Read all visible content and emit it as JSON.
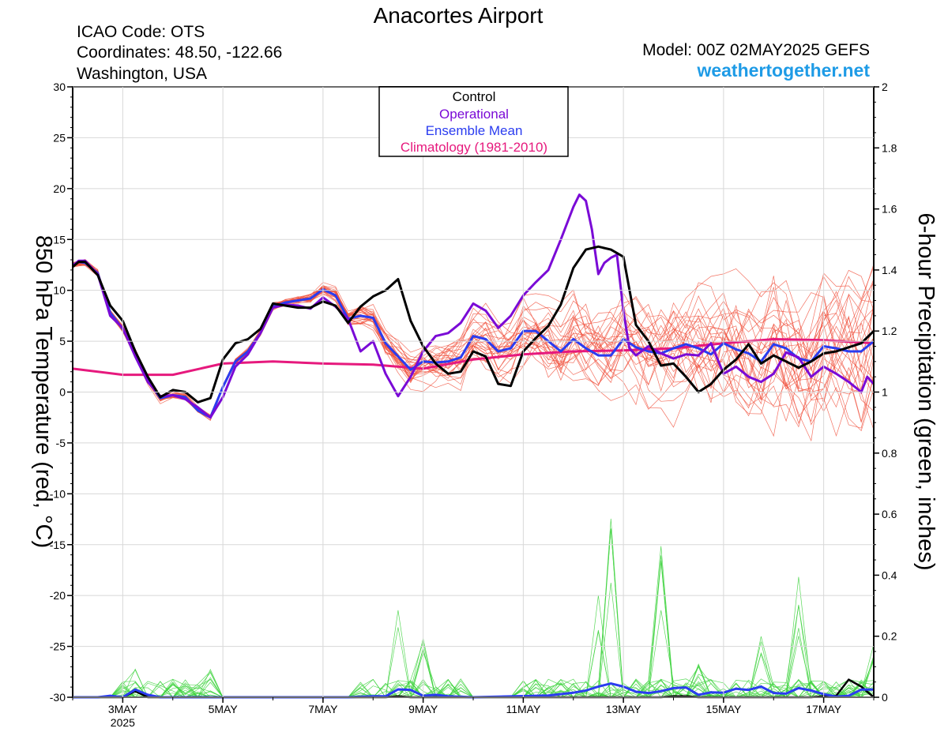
{
  "header": {
    "title": "Anacortes Airport",
    "icao": "ICAO Code: OTS",
    "coords": "Coordinates: 48.50, -122.66",
    "region": "Washington, USA",
    "model": "Model: 00Z 02MAY2025 GEFS",
    "site": "weathertogether.net"
  },
  "colors": {
    "control": "#000000",
    "operational": "#7a0ad6",
    "mean": "#2a3cf0",
    "climatology": "#e6197d",
    "ens_temp": "#f0503c",
    "ens_precip": "#3cd23c",
    "site": "#1e9be6"
  },
  "chart_data": {
    "type": "line",
    "title": "Anacortes Airport",
    "ylabel": "850 hPa Temperature (red, °C)",
    "y2label": "6-hour Precipitation (green, inches)",
    "xlim": [
      2.0,
      18.0
    ],
    "ylim": [
      -30,
      30
    ],
    "y2lim": [
      0,
      2
    ],
    "y_ticks": [
      30,
      25,
      20,
      15,
      10,
      5,
      0,
      -5,
      -10,
      -15,
      -20,
      -25,
      -30
    ],
    "y2_ticks": [
      "2",
      "1.8",
      "1.6",
      "1.4",
      "1.2",
      "1",
      "0.8",
      "0.6",
      "0.4",
      "0.2",
      "0"
    ],
    "x_ticks": [
      {
        "x": 3,
        "label": "3MAY",
        "sub": "2025"
      },
      {
        "x": 5,
        "label": "5MAY"
      },
      {
        "x": 7,
        "label": "7MAY"
      },
      {
        "x": 9,
        "label": "9MAY"
      },
      {
        "x": 11,
        "label": "11MAY"
      },
      {
        "x": 13,
        "label": "13MAY"
      },
      {
        "x": 15,
        "label": "15MAY"
      },
      {
        "x": 17,
        "label": "17MAY"
      }
    ],
    "legend": {
      "position": "top-center",
      "entries": [
        "Control",
        "Operational",
        "Ensemble Mean",
        "Climatology (1981-2010)"
      ]
    },
    "series": [
      {
        "key": "control_temp",
        "x": [
          2.0,
          2.12,
          2.25,
          2.5,
          2.75,
          3.0,
          3.25,
          3.5,
          3.75,
          4.0,
          4.25,
          4.5,
          4.75,
          5.0,
          5.25,
          5.5,
          5.75,
          6.0,
          6.25,
          6.5,
          6.75,
          7.0,
          7.25,
          7.5,
          7.75,
          8.0,
          8.25,
          8.5,
          8.75,
          9.0,
          9.25,
          9.5,
          9.75,
          10.0,
          10.25,
          10.5,
          10.75,
          11.0,
          11.25,
          11.5,
          11.75,
          12.0,
          12.25,
          12.5,
          12.75,
          13.0,
          13.25,
          13.5,
          13.75,
          14.0,
          14.25,
          14.5,
          14.75,
          15.0,
          15.25,
          15.5,
          15.75,
          16.0,
          16.25,
          16.5,
          16.75,
          17.0,
          17.25,
          17.5,
          17.75,
          18.0
        ],
        "y": [
          12.3,
          12.8,
          12.8,
          11.5,
          8.5,
          7.0,
          4.0,
          1.5,
          -0.5,
          0.2,
          0.0,
          -1.0,
          -0.6,
          3.2,
          4.8,
          5.2,
          6.2,
          8.7,
          8.5,
          8.3,
          8.3,
          8.9,
          8.5,
          6.8,
          8.4,
          9.4,
          10.0,
          11.1,
          7.0,
          4.5,
          2.8,
          1.8,
          2.0,
          4.0,
          3.5,
          0.8,
          0.6,
          4.0,
          5.3,
          6.5,
          8.6,
          12.2,
          14.0,
          14.3,
          14.0,
          13.3,
          6.6,
          5.0,
          2.6,
          2.8,
          1.5,
          0.0,
          0.8,
          2.2,
          3.2,
          4.7,
          2.8,
          3.6,
          3.0,
          2.4,
          3.0,
          3.8,
          4.0,
          4.4,
          4.8,
          6.0
        ]
      },
      {
        "key": "operational_temp",
        "x": [
          2.0,
          2.12,
          2.25,
          2.5,
          2.75,
          3.0,
          3.25,
          3.5,
          3.75,
          4.0,
          4.25,
          4.5,
          4.75,
          5.0,
          5.25,
          5.5,
          5.75,
          6.0,
          6.25,
          6.5,
          6.75,
          7.0,
          7.25,
          7.5,
          7.75,
          8.0,
          8.25,
          8.5,
          8.75,
          9.0,
          9.25,
          9.5,
          9.75,
          10.0,
          10.25,
          10.5,
          10.75,
          11.0,
          11.25,
          11.5,
          11.75,
          12.0,
          12.12,
          12.25,
          12.37,
          12.5,
          12.62,
          12.75,
          12.87,
          13.0,
          13.12,
          13.25,
          13.5,
          13.75,
          14.0,
          14.25,
          14.5,
          14.75,
          15.0,
          15.25,
          15.5,
          15.75,
          16.0,
          16.25,
          16.5,
          16.75,
          17.0,
          17.25,
          17.5,
          17.75,
          17.87,
          18.0
        ],
        "y": [
          12.4,
          12.9,
          12.9,
          11.6,
          7.5,
          6.3,
          3.5,
          1.0,
          -0.4,
          -0.3,
          -0.7,
          -1.5,
          -2.5,
          -0.5,
          2.5,
          3.7,
          5.8,
          8.3,
          8.6,
          8.5,
          8.2,
          9.3,
          8.4,
          7.2,
          4.0,
          5.0,
          1.8,
          -0.4,
          1.5,
          4.0,
          5.5,
          5.8,
          6.8,
          8.7,
          8.0,
          6.3,
          7.5,
          9.5,
          10.8,
          12.0,
          15.0,
          18.2,
          19.4,
          18.8,
          16.0,
          11.6,
          12.7,
          13.2,
          13.5,
          8.0,
          4.3,
          3.6,
          4.5,
          3.8,
          3.3,
          3.7,
          3.6,
          4.8,
          1.8,
          2.5,
          1.5,
          1.0,
          1.8,
          3.9,
          3.4,
          1.5,
          2.5,
          1.8,
          1.0,
          0.0,
          1.5,
          0.8
        ]
      },
      {
        "key": "mean_temp",
        "x": [
          2.0,
          2.12,
          2.25,
          2.5,
          2.75,
          3.0,
          3.25,
          3.5,
          3.75,
          4.0,
          4.25,
          4.5,
          4.75,
          5.0,
          5.25,
          5.5,
          5.75,
          6.0,
          6.25,
          6.5,
          6.75,
          7.0,
          7.25,
          7.5,
          7.75,
          8.0,
          8.25,
          8.5,
          8.75,
          9.0,
          9.25,
          9.5,
          9.75,
          10.0,
          10.25,
          10.5,
          10.75,
          11.0,
          11.25,
          11.5,
          11.75,
          12.0,
          12.25,
          12.5,
          12.75,
          13.0,
          13.25,
          13.5,
          13.75,
          14.0,
          14.25,
          14.5,
          14.75,
          15.0,
          15.25,
          15.5,
          15.75,
          16.0,
          16.25,
          16.5,
          16.75,
          17.0,
          17.25,
          17.5,
          17.75,
          18.0
        ],
        "y": [
          12.5,
          12.8,
          12.7,
          11.7,
          7.8,
          6.2,
          3.8,
          1.2,
          -0.6,
          -0.3,
          -0.5,
          -1.8,
          -2.5,
          0.5,
          3.0,
          4.0,
          5.8,
          8.4,
          8.8,
          9.0,
          9.2,
          10.1,
          9.5,
          7.2,
          7.5,
          7.3,
          4.8,
          3.5,
          2.2,
          3.0,
          2.9,
          3.0,
          3.4,
          5.5,
          5.2,
          4.0,
          4.3,
          6.0,
          6.0,
          5.0,
          4.0,
          5.2,
          4.3,
          3.6,
          3.6,
          5.2,
          4.4,
          4.0,
          3.8,
          4.3,
          4.7,
          4.3,
          3.7,
          4.8,
          4.2,
          3.8,
          3.0,
          4.7,
          4.3,
          3.3,
          3.0,
          4.5,
          4.3,
          4.0,
          4.0,
          5.0
        ]
      },
      {
        "key": "climatology_temp",
        "x": [
          2.0,
          3.0,
          4.0,
          5.0,
          6.0,
          7.0,
          8.0,
          9.0,
          10.0,
          11.0,
          12.0,
          13.0,
          14.0,
          15.0,
          16.0,
          17.0,
          18.0
        ],
        "y": [
          2.3,
          1.7,
          1.7,
          2.8,
          3.0,
          2.8,
          2.7,
          2.3,
          3.2,
          3.7,
          4.0,
          4.1,
          4.3,
          4.8,
          5.2,
          5.1,
          4.8
        ]
      },
      {
        "key": "control_precip",
        "x": [
          2.0,
          2.5,
          2.75,
          3.0,
          3.25,
          3.5,
          3.75,
          4.0,
          4.5,
          5.0,
          5.5,
          6.0,
          6.5,
          7.0,
          7.5,
          8.0,
          8.25,
          8.5,
          8.75,
          9.0,
          9.5,
          10.0,
          10.5,
          11.0,
          11.5,
          12.0,
          12.5,
          13.0,
          13.25,
          13.5,
          13.75,
          14.0,
          14.25,
          14.5,
          14.75,
          15.0,
          15.5,
          16.0,
          16.5,
          16.75,
          17.0,
          17.25,
          17.5,
          17.75,
          18.0
        ],
        "y": [
          0,
          0,
          0,
          0,
          0.02,
          0,
          0,
          0,
          0,
          0,
          0,
          0,
          0,
          0,
          0,
          0,
          0,
          0.003,
          0,
          0,
          0,
          0,
          0,
          0,
          0,
          0,
          0,
          0,
          0,
          0,
          0,
          0.003,
          0.003,
          0,
          0,
          0,
          0,
          0,
          0,
          0,
          0.003,
          0.005,
          0.058,
          0.035,
          0
        ]
      },
      {
        "key": "mean_precip",
        "x": [
          2.0,
          2.5,
          2.75,
          3.0,
          3.25,
          3.5,
          3.75,
          4.0,
          4.5,
          5.0,
          5.5,
          6.0,
          6.5,
          7.0,
          7.5,
          8.0,
          8.25,
          8.5,
          8.75,
          9.0,
          9.25,
          9.5,
          10.0,
          10.5,
          11.0,
          11.5,
          12.0,
          12.25,
          12.5,
          12.75,
          13.0,
          13.25,
          13.5,
          13.75,
          14.0,
          14.25,
          14.5,
          14.75,
          15.0,
          15.25,
          15.5,
          15.75,
          16.0,
          16.25,
          16.5,
          16.75,
          17.0,
          17.25,
          17.5,
          17.75,
          18.0
        ],
        "y": [
          0,
          0,
          0.005,
          0,
          0.025,
          0.008,
          0,
          0,
          0,
          0,
          0,
          0,
          0,
          0,
          0,
          0.003,
          0.003,
          0.026,
          0.024,
          0.005,
          0.008,
          0.003,
          0,
          0.002,
          0.004,
          0.006,
          0.015,
          0.022,
          0.035,
          0.045,
          0.035,
          0.018,
          0.014,
          0.02,
          0.03,
          0.032,
          0.008,
          0.016,
          0.015,
          0.028,
          0.024,
          0.035,
          0.014,
          0.012,
          0.03,
          0.022,
          0.01,
          0.002,
          0.005,
          0.025,
          0.025
        ]
      }
    ]
  }
}
